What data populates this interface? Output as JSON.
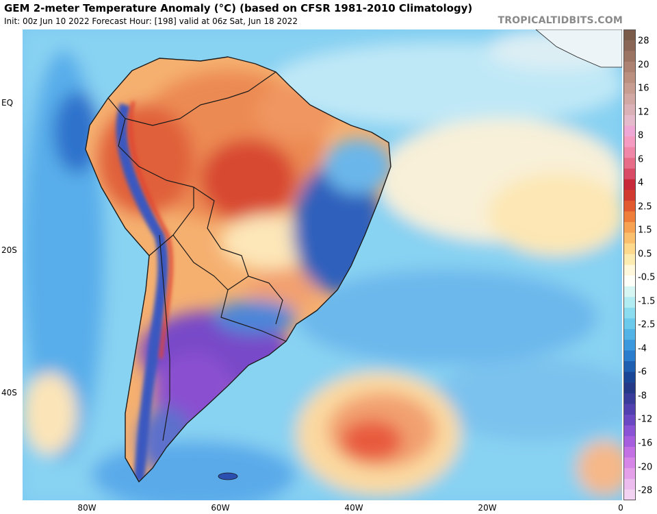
{
  "header": {
    "title": "GEM 2-meter Temperature Anomaly (°C) (based on CFSR 1981-2010 Climatology)",
    "subtitle": "Init: 00z Jun 10 2022   Forecast Hour: [198]   valid at 06z Sat, Jun 18 2022",
    "credit": "TROPICALTIDBITS.COM"
  },
  "axes": {
    "y_labels": [
      "EQ",
      "20S",
      "40S"
    ],
    "x_labels": [
      "80W",
      "60W",
      "40W",
      "20W",
      "0"
    ]
  },
  "colorbar": {
    "labels": [
      "28",
      "20",
      "16",
      "12",
      "8",
      "6",
      "4",
      "2.5",
      "1.5",
      "0.5",
      "-0.5",
      "-1.5",
      "-2.5",
      "-4",
      "-6",
      "-8",
      "-12",
      "-16",
      "-20",
      "-28"
    ],
    "colors": [
      "#7a5a48",
      "#8a6656",
      "#9c7464",
      "#ad8272",
      "#bc9080",
      "#c79d92",
      "#d1a8a4",
      "#dbb1b8",
      "#e5bbcc",
      "#efa8d6",
      "#f59ac0",
      "#f087a8",
      "#e66c88",
      "#d94a66",
      "#c82a3c",
      "#d03a30",
      "#e25a30",
      "#ee7e3a",
      "#f6a252",
      "#fbc06e",
      "#fdd98e",
      "#fdecb2",
      "#fff8dc",
      "#fffffa",
      "#d6f6f4",
      "#b0ecf2",
      "#8cdcf0",
      "#6ccaec",
      "#52b4e6",
      "#3c98de",
      "#2a7ccc",
      "#1f5fb2",
      "#1a4698",
      "#243a88",
      "#3a3c9c",
      "#5040b0",
      "#6a48c4",
      "#8a52d4",
      "#a65ede",
      "#c270e4",
      "#d686e6",
      "#e4a0e8",
      "#ecbcee",
      "#f2d4f2"
    ]
  },
  "map": {
    "ocean_color": "#74c4f2",
    "pacific_color": "#58b0ec",
    "warm_color": "#ec7a48",
    "hot_color": "#d8402e",
    "mild_color": "#fcd9a0",
    "cold_color": "#2e62c0",
    "very_cold_color": "#7042c8",
    "border_color": "#1a1a1a"
  }
}
